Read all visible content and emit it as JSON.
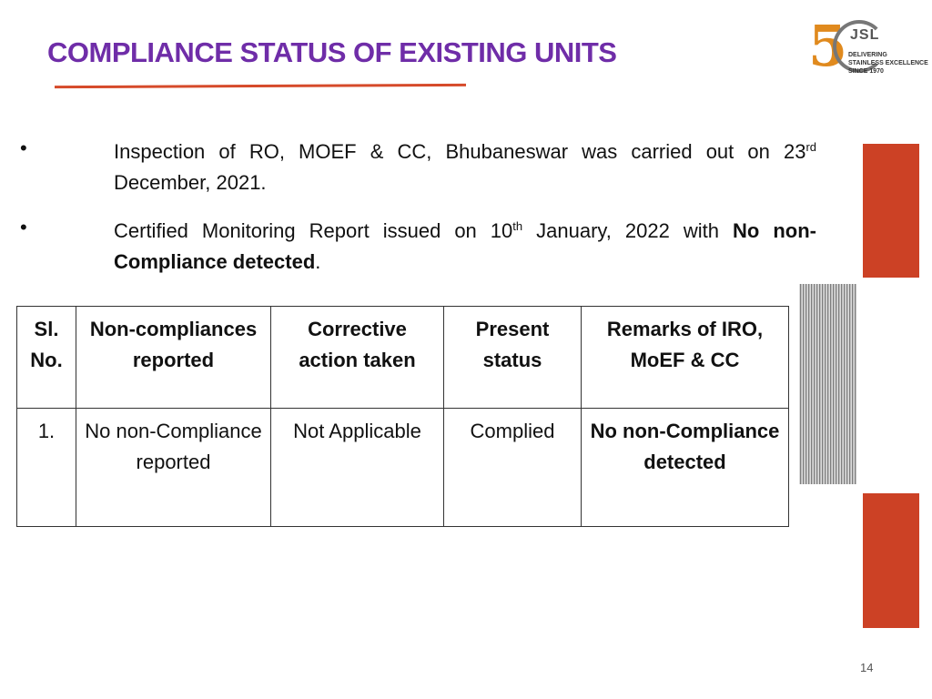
{
  "header": {
    "title": "COMPLIANCE STATUS OF EXISTING UNITS"
  },
  "logo": {
    "mark": "5",
    "brand": "JSL",
    "tagline": [
      "DELIVERING",
      "STAINLESS EXCELLENCE",
      "SINCE 1970"
    ]
  },
  "bullets": [
    {
      "text": "Inspection of RO, MOEF & CC, Bhubaneswar was carried out on 23",
      "sup": "rd",
      "rest": " December, 2021."
    },
    {
      "text": " Certified Monitoring Report issued on 10",
      "sup": "th",
      "rest": " January, 2022 with ",
      "bold": "No non-Compliance detected",
      "end": "."
    }
  ],
  "table": {
    "headers": [
      "Sl. No.",
      "Non-compliances reported",
      "Corrective action taken",
      "Present status",
      "Remarks of IRO, MoEF & CC"
    ],
    "rows": [
      [
        "1.",
        "No non-Compliance reported",
        "Not Applicable",
        "Complied",
        "No non-Compliance detected"
      ]
    ]
  },
  "page_number": "14"
}
